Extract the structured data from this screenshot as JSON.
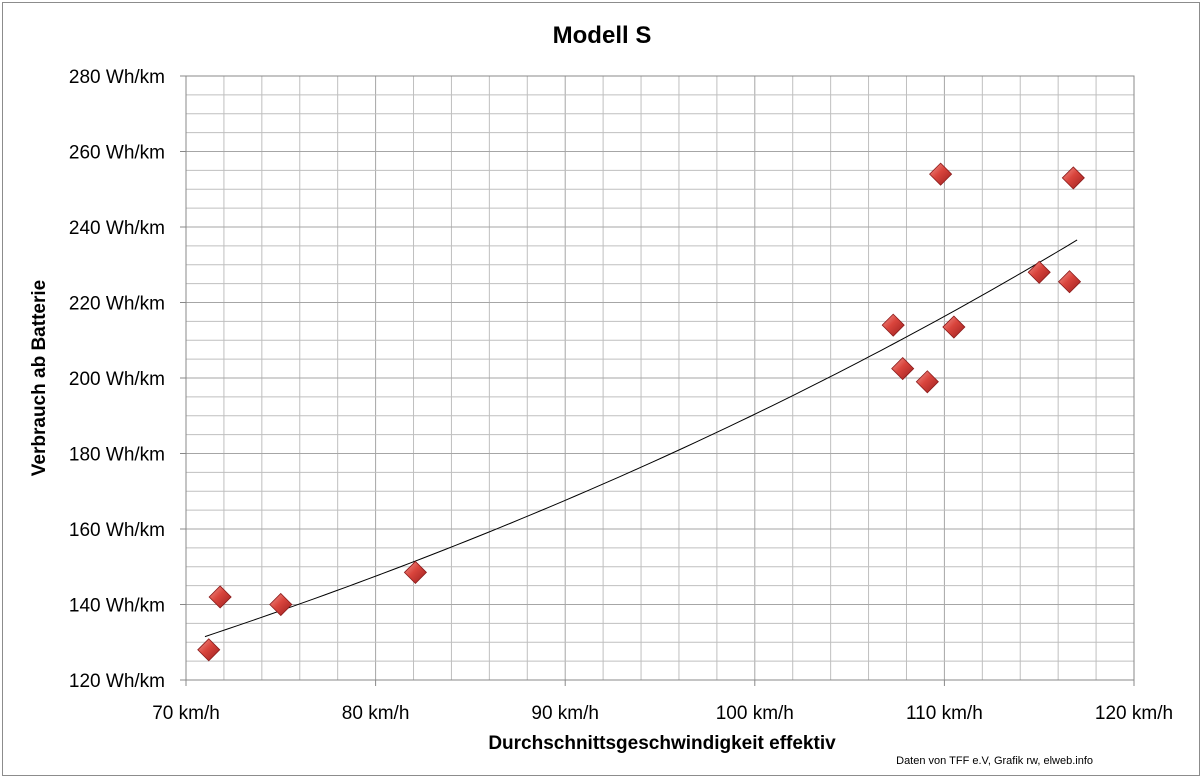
{
  "chart_data": {
    "type": "scatter",
    "title": "Modell S",
    "xlabel": "Durchschnittsgeschwindigkeit effektiv",
    "ylabel": "Verbrauch ab Batterie",
    "xlim": [
      70,
      120
    ],
    "ylim": [
      120,
      280
    ],
    "x_ticks": [
      70,
      80,
      90,
      100,
      110,
      120
    ],
    "y_ticks": [
      120,
      140,
      160,
      180,
      200,
      220,
      240,
      260,
      280
    ],
    "x_tick_labels": [
      "70 km/h",
      "80 km/h",
      "90 km/h",
      "100 km/h",
      "110 km/h",
      "120 km/h"
    ],
    "y_tick_labels": [
      "120 Wh/km",
      "140 Wh/km",
      "160 Wh/km",
      "180 Wh/km",
      "200 Wh/km",
      "220 Wh/km",
      "240 Wh/km",
      "260 Wh/km",
      "280 Wh/km"
    ],
    "grid": true,
    "legend": "none",
    "marker_color": "#c0272d",
    "trendline_color": "#000000",
    "grid_color": "#bfbfbf",
    "points": [
      {
        "x": 71.2,
        "y": 128
      },
      {
        "x": 71.8,
        "y": 142
      },
      {
        "x": 75.0,
        "y": 140
      },
      {
        "x": 82.1,
        "y": 148.5
      },
      {
        "x": 107.3,
        "y": 214
      },
      {
        "x": 107.8,
        "y": 202.5
      },
      {
        "x": 109.1,
        "y": 199
      },
      {
        "x": 109.8,
        "y": 254
      },
      {
        "x": 110.5,
        "y": 213.5
      },
      {
        "x": 115.0,
        "y": 228
      },
      {
        "x": 116.6,
        "y": 225.5
      },
      {
        "x": 116.8,
        "y": 253
      }
    ],
    "trendline": {
      "type": "exponential",
      "x": [
        71,
        80,
        90,
        100,
        110,
        117
      ],
      "y": [
        134.8,
        146,
        164,
        188,
        217.5,
        240
      ]
    }
  },
  "credit": "Daten von TFF e.V, Grafik rw, elweb.info"
}
